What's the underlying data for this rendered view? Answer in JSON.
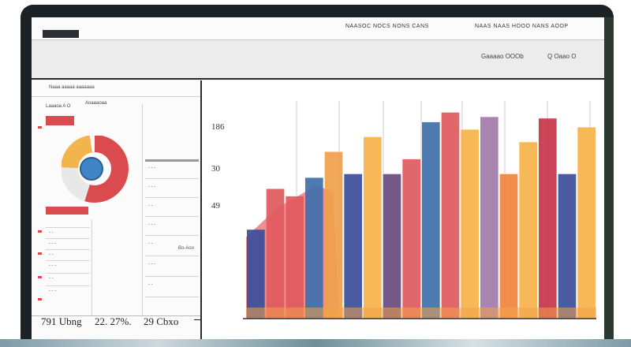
{
  "topbar": {
    "left_text": "NAASOC NOCS NONS CANS",
    "right_text": "NAAS NAAS HOOO NANS AOOP"
  },
  "toolbar": {
    "left_text": "Gaaaao OOOb",
    "right_text": "Q Oaao O"
  },
  "sidebar": {
    "header": "Naaa aaaaa aaaaaaa",
    "row1": "Laaaoa A O",
    "row1b": "Aoaaaoaa",
    "list_right": [
      "- - -",
      "- - -",
      "- -",
      "- - -",
      "- -",
      "- - -",
      "- -"
    ],
    "list_left": [
      "- -",
      "- - -",
      "- -",
      "- - -",
      "- -",
      "- - -"
    ],
    "note": "Bo-Aoo"
  },
  "totals": [
    {
      "value": "791 Ubng"
    },
    {
      "value": "22. 27%."
    },
    {
      "value": "29 Cbxo"
    }
  ],
  "chart_data": {
    "type": "bar",
    "y_tick_labels": [
      "186",
      "30",
      "49"
    ],
    "bars": [
      {
        "color": "#3c4d9a",
        "value": 120
      },
      {
        "color": "#e05a5e",
        "value": 175
      },
      {
        "color": "#e05a5e",
        "value": 165
      },
      {
        "color": "#3f6fab",
        "value": 190
      },
      {
        "color": "#f0a04a",
        "value": 225
      },
      {
        "color": "#3c4d9a",
        "value": 195
      },
      {
        "color": "#f6b24a",
        "value": 245
      },
      {
        "color": "#6a4a7e",
        "value": 195
      },
      {
        "color": "#e05a5e",
        "value": 215
      },
      {
        "color": "#3f6fab",
        "value": 265
      },
      {
        "color": "#e05a5e",
        "value": 278
      },
      {
        "color": "#f6b24a",
        "value": 255
      },
      {
        "color": "#a17aa8",
        "value": 272
      },
      {
        "color": "#f0843e",
        "value": 195
      },
      {
        "color": "#f6b24a",
        "value": 238
      },
      {
        "color": "#c7344a",
        "value": 270
      },
      {
        "color": "#3c4d9a",
        "value": 195
      },
      {
        "color": "#f6b24a",
        "value": 258
      }
    ],
    "ylim": [
      0,
      300
    ],
    "grid": true
  }
}
